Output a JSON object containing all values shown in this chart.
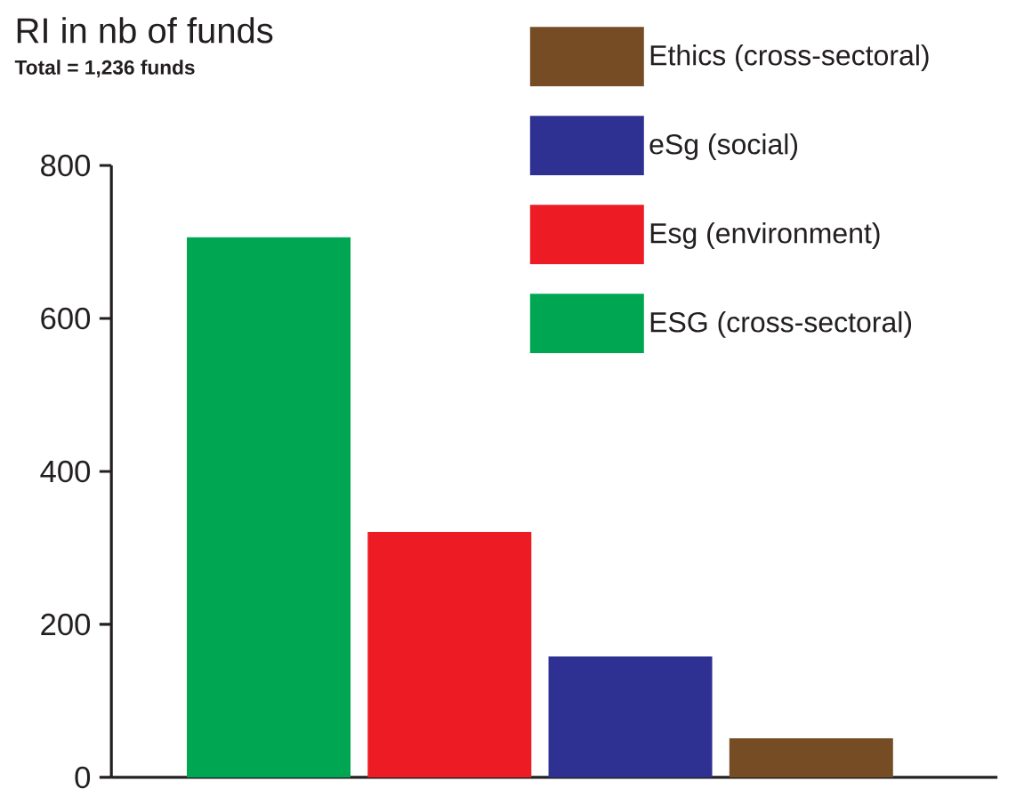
{
  "chart_data": {
    "type": "bar",
    "title": "RI in nb of funds",
    "subtitle": "Total = 1,236 funds",
    "categories": [
      null,
      null,
      null,
      null
    ],
    "series": [
      {
        "name": "Ethics (cross-sectoral)",
        "color": "#754c24",
        "values": [
          null,
          null,
          null,
          51
        ]
      },
      {
        "name": "eSg (social)",
        "color": "#2e3192",
        "values": [
          null,
          null,
          158,
          null
        ]
      },
      {
        "name": "Esg (environment)",
        "color": "#ed1c24",
        "values": [
          null,
          321,
          null,
          null
        ]
      },
      {
        "name": "ESG (cross-sectoral)",
        "color": "#00a651",
        "values": [
          706,
          null,
          null,
          null
        ]
      }
    ],
    "ylim": [
      0,
      800
    ],
    "yticks": [
      0,
      200,
      400,
      600,
      800
    ],
    "grid": false,
    "legend": "top right"
  }
}
